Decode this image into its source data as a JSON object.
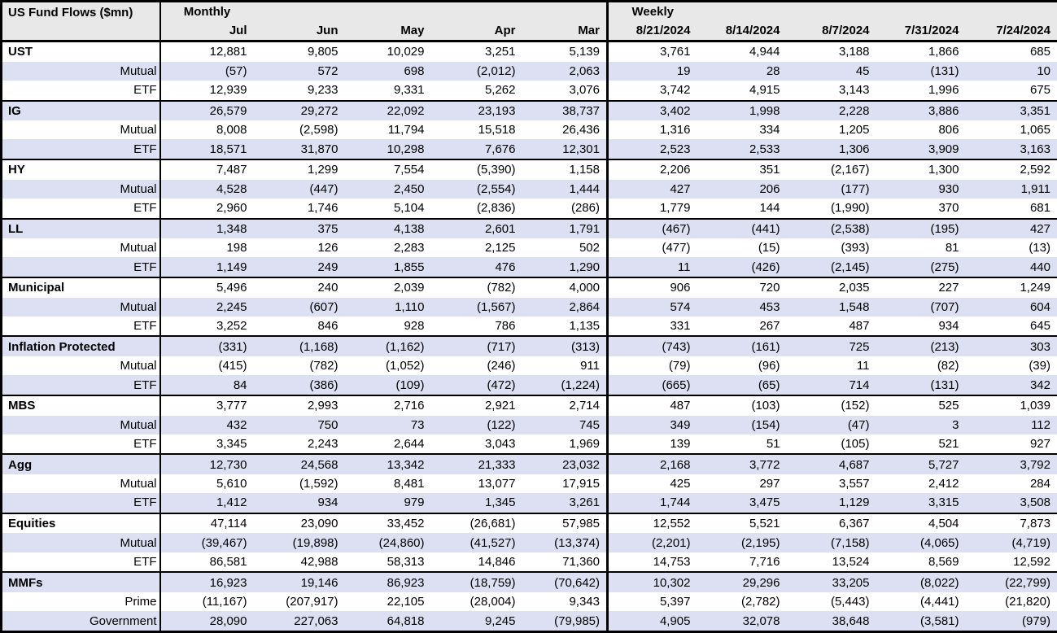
{
  "colors": {
    "stripe": "#dce0f2",
    "header_bg": "#e8e8e8",
    "border": "#000000",
    "background": "#ffffff"
  },
  "chart_data": {
    "type": "table",
    "title": "US Fund Flows ($mn)",
    "column_groups": [
      {
        "label": "Monthly",
        "columns": [
          "Jul",
          "Jun",
          "May",
          "Apr",
          "Mar"
        ]
      },
      {
        "label": "Weekly",
        "columns": [
          "8/21/2024",
          "8/14/2024",
          "8/7/2024",
          "7/31/2024",
          "7/24/2024"
        ]
      }
    ],
    "sections": [
      {
        "rows": [
          {
            "label": "UST",
            "category": true,
            "monthly": [
              "12,881",
              "9,805",
              "10,029",
              "3,251",
              "5,139"
            ],
            "weekly": [
              "3,761",
              "4,944",
              "3,188",
              "1,866",
              "685"
            ]
          },
          {
            "label": "Mutual",
            "category": false,
            "monthly": [
              "(57)",
              "572",
              "698",
              "(2,012)",
              "2,063"
            ],
            "weekly": [
              "19",
              "28",
              "45",
              "(131)",
              "10"
            ]
          },
          {
            "label": "ETF",
            "category": false,
            "monthly": [
              "12,939",
              "9,233",
              "9,331",
              "5,262",
              "3,076"
            ],
            "weekly": [
              "3,742",
              "4,915",
              "3,143",
              "1,996",
              "675"
            ]
          }
        ]
      },
      {
        "rows": [
          {
            "label": "IG",
            "category": true,
            "monthly": [
              "26,579",
              "29,272",
              "22,092",
              "23,193",
              "38,737"
            ],
            "weekly": [
              "3,402",
              "1,998",
              "2,228",
              "3,886",
              "3,351"
            ]
          },
          {
            "label": "Mutual",
            "category": false,
            "monthly": [
              "8,008",
              "(2,598)",
              "11,794",
              "15,518",
              "26,436"
            ],
            "weekly": [
              "1,316",
              "334",
              "1,205",
              "806",
              "1,065"
            ]
          },
          {
            "label": "ETF",
            "category": false,
            "monthly": [
              "18,571",
              "31,870",
              "10,298",
              "7,676",
              "12,301"
            ],
            "weekly": [
              "2,523",
              "2,533",
              "1,306",
              "3,909",
              "3,163"
            ]
          }
        ]
      },
      {
        "rows": [
          {
            "label": "HY",
            "category": true,
            "monthly": [
              "7,487",
              "1,299",
              "7,554",
              "(5,390)",
              "1,158"
            ],
            "weekly": [
              "2,206",
              "351",
              "(2,167)",
              "1,300",
              "2,592"
            ]
          },
          {
            "label": "Mutual",
            "category": false,
            "monthly": [
              "4,528",
              "(447)",
              "2,450",
              "(2,554)",
              "1,444"
            ],
            "weekly": [
              "427",
              "206",
              "(177)",
              "930",
              "1,911"
            ]
          },
          {
            "label": "ETF",
            "category": false,
            "monthly": [
              "2,960",
              "1,746",
              "5,104",
              "(2,836)",
              "(286)"
            ],
            "weekly": [
              "1,779",
              "144",
              "(1,990)",
              "370",
              "681"
            ]
          }
        ]
      },
      {
        "rows": [
          {
            "label": "LL",
            "category": true,
            "monthly": [
              "1,348",
              "375",
              "4,138",
              "2,601",
              "1,791"
            ],
            "weekly": [
              "(467)",
              "(441)",
              "(2,538)",
              "(195)",
              "427"
            ]
          },
          {
            "label": "Mutual",
            "category": false,
            "monthly": [
              "198",
              "126",
              "2,283",
              "2,125",
              "502"
            ],
            "weekly": [
              "(477)",
              "(15)",
              "(393)",
              "81",
              "(13)"
            ]
          },
          {
            "label": "ETF",
            "category": false,
            "monthly": [
              "1,149",
              "249",
              "1,855",
              "476",
              "1,290"
            ],
            "weekly": [
              "11",
              "(426)",
              "(2,145)",
              "(275)",
              "440"
            ]
          }
        ]
      },
      {
        "rows": [
          {
            "label": "Municipal",
            "category": true,
            "monthly": [
              "5,496",
              "240",
              "2,039",
              "(782)",
              "4,000"
            ],
            "weekly": [
              "906",
              "720",
              "2,035",
              "227",
              "1,249"
            ]
          },
          {
            "label": "Mutual",
            "category": false,
            "monthly": [
              "2,245",
              "(607)",
              "1,110",
              "(1,567)",
              "2,864"
            ],
            "weekly": [
              "574",
              "453",
              "1,548",
              "(707)",
              "604"
            ]
          },
          {
            "label": "ETF",
            "category": false,
            "monthly": [
              "3,252",
              "846",
              "928",
              "786",
              "1,135"
            ],
            "weekly": [
              "331",
              "267",
              "487",
              "934",
              "645"
            ]
          }
        ]
      },
      {
        "rows": [
          {
            "label": "Inflation Protected",
            "category": true,
            "monthly": [
              "(331)",
              "(1,168)",
              "(1,162)",
              "(717)",
              "(313)"
            ],
            "weekly": [
              "(743)",
              "(161)",
              "725",
              "(213)",
              "303"
            ]
          },
          {
            "label": "Mutual",
            "category": false,
            "monthly": [
              "(415)",
              "(782)",
              "(1,052)",
              "(246)",
              "911"
            ],
            "weekly": [
              "(79)",
              "(96)",
              "11",
              "(82)",
              "(39)"
            ]
          },
          {
            "label": "ETF",
            "category": false,
            "monthly": [
              "84",
              "(386)",
              "(109)",
              "(472)",
              "(1,224)"
            ],
            "weekly": [
              "(665)",
              "(65)",
              "714",
              "(131)",
              "342"
            ]
          }
        ]
      },
      {
        "rows": [
          {
            "label": "MBS",
            "category": true,
            "monthly": [
              "3,777",
              "2,993",
              "2,716",
              "2,921",
              "2,714"
            ],
            "weekly": [
              "487",
              "(103)",
              "(152)",
              "525",
              "1,039"
            ]
          },
          {
            "label": "Mutual",
            "category": false,
            "monthly": [
              "432",
              "750",
              "73",
              "(122)",
              "745"
            ],
            "weekly": [
              "349",
              "(154)",
              "(47)",
              "3",
              "112"
            ]
          },
          {
            "label": "ETF",
            "category": false,
            "monthly": [
              "3,345",
              "2,243",
              "2,644",
              "3,043",
              "1,969"
            ],
            "weekly": [
              "139",
              "51",
              "(105)",
              "521",
              "927"
            ]
          }
        ]
      },
      {
        "rows": [
          {
            "label": "Agg",
            "category": true,
            "monthly": [
              "12,730",
              "24,568",
              "13,342",
              "21,333",
              "23,032"
            ],
            "weekly": [
              "2,168",
              "3,772",
              "4,687",
              "5,727",
              "3,792"
            ]
          },
          {
            "label": "Mutual",
            "category": false,
            "monthly": [
              "5,610",
              "(1,592)",
              "8,481",
              "13,077",
              "17,915"
            ],
            "weekly": [
              "425",
              "297",
              "3,557",
              "2,412",
              "284"
            ]
          },
          {
            "label": "ETF",
            "category": false,
            "monthly": [
              "1,412",
              "934",
              "979",
              "1,345",
              "3,261"
            ],
            "weekly": [
              "1,744",
              "3,475",
              "1,129",
              "3,315",
              "3,508"
            ]
          }
        ]
      },
      {
        "rows": [
          {
            "label": "Equities",
            "category": true,
            "monthly": [
              "47,114",
              "23,090",
              "33,452",
              "(26,681)",
              "57,985"
            ],
            "weekly": [
              "12,552",
              "5,521",
              "6,367",
              "4,504",
              "7,873"
            ]
          },
          {
            "label": "Mutual",
            "category": false,
            "monthly": [
              "(39,467)",
              "(19,898)",
              "(24,860)",
              "(41,527)",
              "(13,374)"
            ],
            "weekly": [
              "(2,201)",
              "(2,195)",
              "(7,158)",
              "(4,065)",
              "(4,719)"
            ]
          },
          {
            "label": "ETF",
            "category": false,
            "monthly": [
              "86,581",
              "42,988",
              "58,313",
              "14,846",
              "71,360"
            ],
            "weekly": [
              "14,753",
              "7,716",
              "13,524",
              "8,569",
              "12,592"
            ]
          }
        ]
      },
      {
        "rows": [
          {
            "label": "MMFs",
            "category": true,
            "monthly": [
              "16,923",
              "19,146",
              "86,923",
              "(18,759)",
              "(70,642)"
            ],
            "weekly": [
              "10,302",
              "29,296",
              "33,205",
              "(8,022)",
              "(22,799)"
            ]
          },
          {
            "label": "Prime",
            "category": false,
            "monthly": [
              "(11,167)",
              "(207,917)",
              "22,105",
              "(28,004)",
              "9,343"
            ],
            "weekly": [
              "5,397",
              "(2,782)",
              "(5,443)",
              "(4,441)",
              "(21,820)"
            ]
          },
          {
            "label": "Government",
            "category": false,
            "monthly": [
              "28,090",
              "227,063",
              "64,818",
              "9,245",
              "(79,985)"
            ],
            "weekly": [
              "4,905",
              "32,078",
              "38,648",
              "(3,581)",
              "(979)"
            ]
          }
        ]
      }
    ]
  }
}
